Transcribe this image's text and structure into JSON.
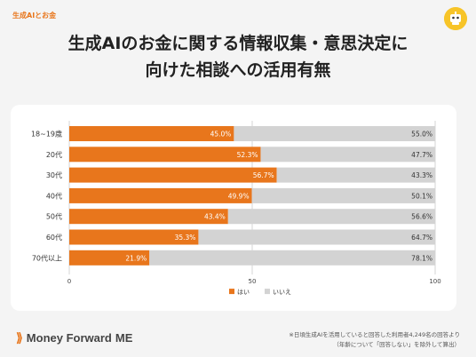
{
  "header": {
    "tag": "生成AIとお金",
    "title_line1": "生成AIのお金に関する情報収集・意思決定に",
    "title_line2": "向けた相談への活用有無"
  },
  "footer": {
    "brand": "Money Forward",
    "brand_suffix": "ME",
    "note_line1": "※日頃生成AIを活用していると回答した利用者4,249名の回答より",
    "note_line2": "（年齢について「回答しない」を除外して算出）"
  },
  "colors": {
    "yes": "#e8761c",
    "no": "#d3d3d3",
    "accent": "#e8761c",
    "bot": "#f7c428"
  },
  "icons": {
    "bot": "robot-face-icon",
    "logo": "money-forward-mark-icon"
  },
  "chart_data": {
    "type": "bar",
    "orientation": "horizontal",
    "stacked": true,
    "categories": [
      "18~19歳",
      "20代",
      "30代",
      "40代",
      "50代",
      "60代",
      "70代以上"
    ],
    "series": [
      {
        "name": "はい",
        "values": [
          45.0,
          52.3,
          56.7,
          49.9,
          43.4,
          35.3,
          21.9
        ]
      },
      {
        "name": "いいえ",
        "values": [
          55.0,
          47.7,
          43.3,
          50.1,
          56.6,
          64.7,
          78.1
        ]
      }
    ],
    "unit": "%",
    "xlim": [
      0,
      100
    ],
    "xticks": [
      0,
      50,
      100
    ],
    "legend": "bottom",
    "grid": true
  }
}
